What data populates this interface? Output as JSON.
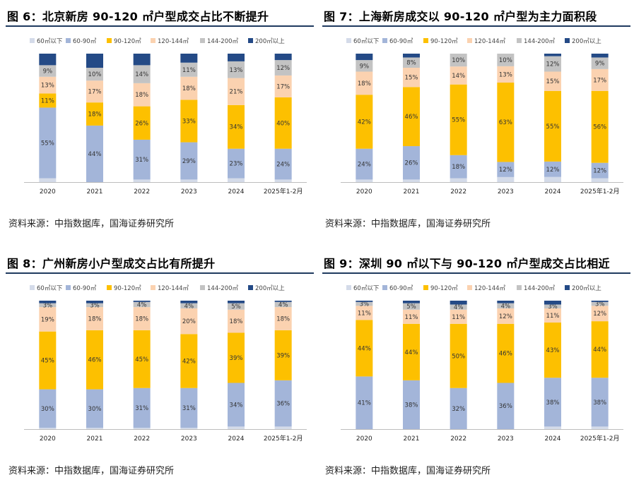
{
  "legend": [
    "60㎡以下",
    "60-90㎡",
    "90-120㎡",
    "120-144㎡",
    "144-200㎡",
    "200㎡以上"
  ],
  "colors": [
    "#d4dbe9",
    "#a3b5d9",
    "#fdc000",
    "#fbd2b0",
    "#c3c3c3",
    "#244a86"
  ],
  "charts": [
    {
      "title": "图 6：北京新房 90-120 ㎡户型成交占比不断提升",
      "source": "资料来源：中指数据库，国海证券研究所"
    },
    {
      "title": "图 7：上海新房成交以 90-120 ㎡户型为主力面积段",
      "source": "资料来源：中指数据库，国海证券研究所"
    },
    {
      "title": "图 8：广州新房小户型成交占比有所提升",
      "source": "资料来源：中指数据库，国海证券研究所"
    },
    {
      "title": "图 9：深圳 90 ㎡以下与 90-120 ㎡户型成交占比相近",
      "source": "资料来源：中指数据库，国海证券研究所"
    }
  ],
  "chart_data": [
    {
      "type": "bar",
      "stacked": true,
      "ylim": [
        0,
        100
      ],
      "categories": [
        "2020",
        "2021",
        "2022",
        "2023",
        "2024",
        "2025年1-2月"
      ],
      "series": [
        {
          "name": "60㎡以下",
          "values": [
            3,
            0,
            2,
            2,
            3,
            2
          ]
        },
        {
          "name": "60-90㎡",
          "values": [
            55,
            44,
            31,
            29,
            23,
            24
          ]
        },
        {
          "name": "90-120㎡",
          "values": [
            11,
            18,
            26,
            33,
            34,
            40
          ]
        },
        {
          "name": "120-144㎡",
          "values": [
            13,
            17,
            18,
            18,
            21,
            17
          ]
        },
        {
          "name": "144-200㎡",
          "values": [
            9,
            10,
            14,
            11,
            13,
            12
          ]
        },
        {
          "name": "200㎡以上",
          "values": [
            9,
            11,
            9,
            7,
            6,
            5
          ]
        }
      ]
    },
    {
      "type": "bar",
      "stacked": true,
      "ylim": [
        0,
        100
      ],
      "categories": [
        "2020",
        "2021",
        "2022",
        "2023",
        "2024",
        "2025年1-2月"
      ],
      "series": [
        {
          "name": "60㎡以下",
          "values": [
            2,
            2,
            3,
            4,
            4,
            3
          ]
        },
        {
          "name": "60-90㎡",
          "values": [
            24,
            26,
            18,
            12,
            12,
            12
          ]
        },
        {
          "name": "90-120㎡",
          "values": [
            42,
            46,
            55,
            63,
            55,
            56
          ]
        },
        {
          "name": "120-144㎡",
          "values": [
            18,
            15,
            14,
            13,
            15,
            17
          ]
        },
        {
          "name": "144-200㎡",
          "values": [
            9,
            8,
            10,
            10,
            12,
            9
          ]
        },
        {
          "name": "200㎡以上",
          "values": [
            5,
            3,
            0,
            0,
            2,
            3
          ]
        }
      ]
    },
    {
      "type": "bar",
      "stacked": true,
      "ylim": [
        0,
        100
      ],
      "categories": [
        "2020",
        "2021",
        "2022",
        "2023",
        "2024",
        "2025年1-2月"
      ],
      "series": [
        {
          "name": "60㎡以下",
          "values": [
            1,
            1,
            1,
            1,
            2,
            2
          ]
        },
        {
          "name": "60-90㎡",
          "values": [
            30,
            30,
            31,
            31,
            34,
            36
          ]
        },
        {
          "name": "90-120㎡",
          "values": [
            45,
            46,
            45,
            42,
            39,
            39
          ]
        },
        {
          "name": "120-144㎡",
          "values": [
            19,
            18,
            18,
            20,
            18,
            18
          ]
        },
        {
          "name": "144-200㎡",
          "values": [
            3,
            3,
            4,
            4,
            5,
            4
          ]
        },
        {
          "name": "200㎡以上",
          "values": [
            2,
            2,
            1,
            2,
            2,
            1
          ]
        }
      ]
    },
    {
      "type": "bar",
      "stacked": true,
      "ylim": [
        0,
        100
      ],
      "categories": [
        "2020",
        "2021",
        "2022",
        "2023",
        "2024",
        "2025年1-2月"
      ],
      "series": [
        {
          "name": "60㎡以下",
          "values": [
            0,
            0,
            0,
            0,
            2,
            2
          ]
        },
        {
          "name": "60-90㎡",
          "values": [
            41,
            38,
            32,
            36,
            38,
            38
          ]
        },
        {
          "name": "90-120㎡",
          "values": [
            44,
            44,
            50,
            46,
            43,
            44
          ]
        },
        {
          "name": "120-144㎡",
          "values": [
            11,
            11,
            11,
            12,
            11,
            12
          ]
        },
        {
          "name": "144-200㎡",
          "values": [
            3,
            5,
            4,
            4,
            3,
            3
          ]
        },
        {
          "name": "200㎡以上",
          "values": [
            1,
            2,
            3,
            2,
            3,
            1
          ]
        }
      ]
    }
  ],
  "labels": [
    [
      [
        null,
        "55%",
        "11%",
        "13%",
        "9%",
        null
      ],
      [
        null,
        "44%",
        "18%",
        "17%",
        "10%",
        null
      ],
      [
        null,
        "31%",
        "26%",
        "18%",
        "14%",
        null
      ],
      [
        null,
        "29%",
        "33%",
        "18%",
        "11%",
        null
      ],
      [
        null,
        "23%",
        "34%",
        "21%",
        "13%",
        null
      ],
      [
        null,
        "24%",
        "40%",
        "17%",
        "12%",
        null
      ]
    ],
    [
      [
        null,
        "24%",
        "42%",
        "18%",
        "9%",
        null
      ],
      [
        null,
        "26%",
        "46%",
        "15%",
        "8%",
        null
      ],
      [
        null,
        "18%",
        "55%",
        "14%",
        "10%",
        null
      ],
      [
        null,
        "12%",
        "63%",
        "13%",
        "10%",
        null
      ],
      [
        null,
        "12%",
        "55%",
        "15%",
        "12%",
        null
      ],
      [
        null,
        "12%",
        "56%",
        "17%",
        "9%",
        null
      ]
    ],
    [
      [
        null,
        "30%",
        "45%",
        "19%",
        "3%",
        null
      ],
      [
        null,
        "30%",
        "46%",
        "18%",
        "3%",
        null
      ],
      [
        null,
        "31%",
        "45%",
        "18%",
        "4%",
        null
      ],
      [
        null,
        "31%",
        "42%",
        "20%",
        "4%",
        null
      ],
      [
        null,
        "34%",
        "39%",
        "18%",
        "5%",
        null
      ],
      [
        null,
        "36%",
        "39%",
        "18%",
        "4%",
        null
      ]
    ],
    [
      [
        null,
        "41%",
        "44%",
        "11%",
        "3%",
        null
      ],
      [
        null,
        "38%",
        "44%",
        "11%",
        "5%",
        null
      ],
      [
        null,
        "32%",
        "50%",
        "11%",
        "4%",
        null
      ],
      [
        null,
        "36%",
        "46%",
        "12%",
        "4%",
        null
      ],
      [
        null,
        "38%",
        "43%",
        "11%",
        "3%",
        null
      ],
      [
        null,
        "38%",
        "44%",
        "12%",
        "3%",
        null
      ]
    ]
  ]
}
